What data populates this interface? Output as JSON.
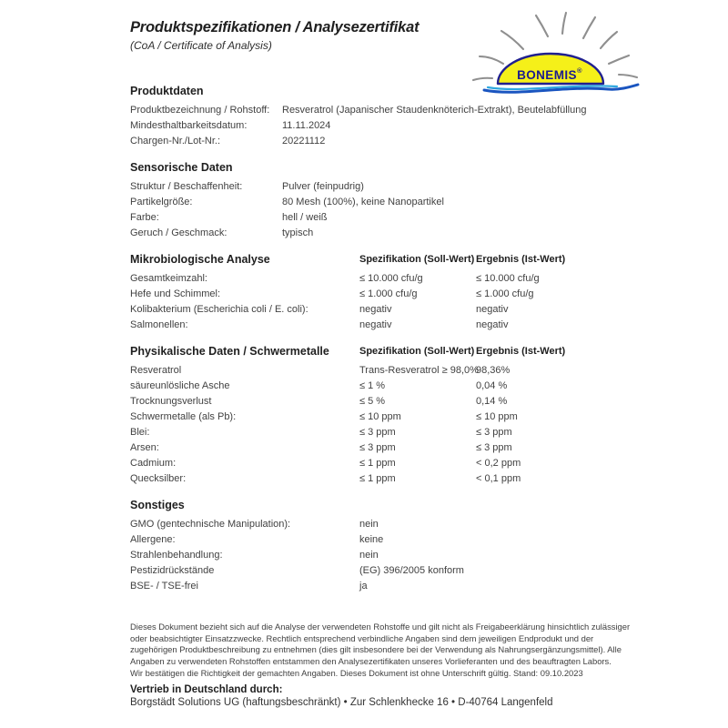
{
  "page": {
    "title": "Produktspezifikationen / Analysezertifikat",
    "subtitle": "(CoA / Certificate of Analysis)"
  },
  "logo": {
    "name": "bonemis-sun-logo",
    "text": "BONEMIS",
    "registered": "®",
    "sun_fill": "#f5f019",
    "sun_outline": "#20208f",
    "text_color": "#1c1c8f",
    "ray_color": "#8f8f8f",
    "wave_dark": "#1a55c0",
    "wave_light": "#2fa8e0"
  },
  "sections": [
    {
      "heading": "Produktdaten",
      "style": "cols-narrow",
      "rows": [
        {
          "label": "Produktbezeichnung / Rohstoff:",
          "value": "Resveratrol (Japanischer Staudenknöterich-Extrakt), Beutelabfüllung"
        },
        {
          "label": "Mindesthaltbarkeitsdatum:",
          "value": "11.11.2024"
        },
        {
          "label": "Chargen-Nr./Lot-Nr.:",
          "value": "20221112"
        }
      ]
    },
    {
      "heading": "Sensorische Daten",
      "style": "cols-narrow",
      "rows": [
        {
          "label": "Struktur / Beschaffenheit:",
          "value": "Pulver (feinpudrig)"
        },
        {
          "label": "Partikelgröße:",
          "value": "80 Mesh (100%), keine Nanopartikel"
        },
        {
          "label": "Farbe:",
          "value": "hell / weiß"
        },
        {
          "label": "Geruch / Geschmack:",
          "value": "typisch"
        }
      ]
    },
    {
      "heading": "Mikrobiologische Analyse",
      "style": "cols-analysis",
      "col_headers": [
        "Spezifikation (Soll-Wert)",
        "Ergebnis (Ist-Wert)"
      ],
      "rows": [
        {
          "label": "Gesamtkeimzahl:",
          "spec": "≤ 10.000 cfu/g",
          "result": "≤ 10.000 cfu/g"
        },
        {
          "label": "Hefe und Schimmel:",
          "spec": "≤ 1.000 cfu/g",
          "result": "≤ 1.000 cfu/g"
        },
        {
          "label": "Kolibakterium (Escherichia coli / E. coli):",
          "spec": "negativ",
          "result": "negativ"
        },
        {
          "label": "Salmonellen:",
          "spec": "negativ",
          "result": "negativ"
        }
      ]
    },
    {
      "heading": "Physikalische Daten / Schwermetalle",
      "style": "cols-analysis",
      "col_headers": [
        "Spezifikation (Soll-Wert)",
        "Ergebnis (Ist-Wert)"
      ],
      "rows": [
        {
          "label": "Resveratrol",
          "spec": "Trans-Resveratrol ≥ 98,0%",
          "result": "98,36%"
        },
        {
          "label": "säureunlösliche Asche",
          "spec": "≤ 1 %",
          "result": "0,04 %"
        },
        {
          "label": "Trocknungsverlust",
          "spec": "≤ 5 %",
          "result": "0,14 %"
        },
        {
          "label": "Schwermetalle (als Pb):",
          "spec": "≤ 10 ppm",
          "result": "≤ 10 ppm"
        },
        {
          "label": "Blei:",
          "spec": "≤ 3 ppm",
          "result": "≤ 3 ppm"
        },
        {
          "label": "Arsen:",
          "spec": "≤ 3 ppm",
          "result": "≤ 3 ppm"
        },
        {
          "label": "Cadmium:",
          "spec": "≤ 1 ppm",
          "result": "< 0,2 ppm"
        },
        {
          "label": "Quecksilber:",
          "spec": "≤ 1 ppm",
          "result": "< 0,1 ppm"
        }
      ]
    },
    {
      "heading": "Sonstiges",
      "style": "cols-wide",
      "rows": [
        {
          "label": "GMO (gentechnische Manipulation):",
          "value": "nein"
        },
        {
          "label": "Allergene:",
          "value": "keine"
        },
        {
          "label": "Strahlenbehandlung:",
          "value": "nein"
        },
        {
          "label": "Pestizidrückstände",
          "value": "(EG) 396/2005 konform"
        },
        {
          "label": "BSE- / TSE-frei",
          "value": "ja"
        }
      ]
    }
  ],
  "disclaimer": {
    "lines": [
      "Dieses Dokument bezieht sich auf die Analyse der verwendeten Rohstoffe und gilt nicht als Freigabeerklärung hinsichtlich zulässiger",
      "oder beabsichtigter Einsatzzwecke. Rechtlich entsprechend verbindliche Angaben sind dem jeweiligen Endprodukt und der",
      "zugehörigen Produktbeschreibung zu entnehmen (dies gilt insbesondere bei der Verwendung als Nahrungsergänzungsmittel). Alle",
      "Angaben zu verwendeten Rohstoffen entstammen den Analysezertifikaten unseres Vorlieferanten und des beauftragten Labors.",
      "Wir bestätigen die Richtigkeit der gemachten Angaben. Dieses Dokument ist ohne Unterschrift gültig. Stand: 09.10.2023"
    ]
  },
  "distribution": {
    "heading": "Vertrieb in Deutschland durch:",
    "address": "Borgstädt Solutions UG (haftungsbeschränkt) • Zur Schlenkhecke 16 • D-40764 Langenfeld"
  }
}
